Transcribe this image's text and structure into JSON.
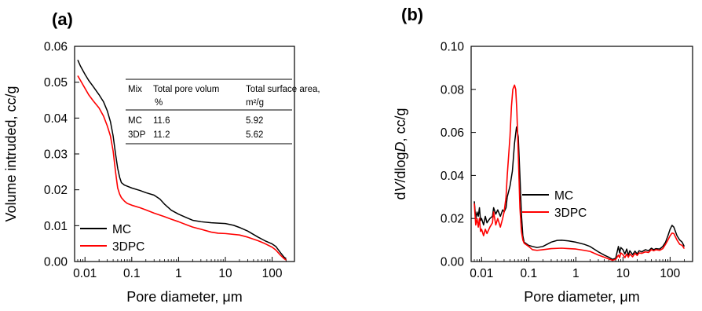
{
  "chart_data": [
    {
      "panel": "(a)",
      "type": "line",
      "xlabel": "Pore diameter, μm",
      "ylabel": "Volume intruded, cc/g",
      "x_scale": "log",
      "xlim": [
        0.006,
        300
      ],
      "ylim": [
        0,
        0.06
      ],
      "x_ticks": [
        0.01,
        0.1,
        1,
        10,
        100
      ],
      "x_tick_labels": [
        "0.01",
        "0.1",
        "1",
        "10",
        "100"
      ],
      "y_ticks": [
        0,
        0.01,
        0.02,
        0.03,
        0.04,
        0.05,
        0.06
      ],
      "y_tick_labels": [
        "0.00",
        "0.01",
        "0.02",
        "0.03",
        "0.04",
        "0.05",
        "0.06"
      ],
      "legend": {
        "placement": "bottom-left",
        "entries": [
          "MC",
          "3DPC"
        ]
      },
      "series": [
        {
          "name": "MC",
          "color": "#000000",
          "points": [
            [
              0.007,
              0.0562
            ],
            [
              0.008,
              0.0545
            ],
            [
              0.01,
              0.0522
            ],
            [
              0.012,
              0.0505
            ],
            [
              0.015,
              0.0488
            ],
            [
              0.02,
              0.0465
            ],
            [
              0.025,
              0.0445
            ],
            [
              0.03,
              0.042
            ],
            [
              0.035,
              0.039
            ],
            [
              0.04,
              0.035
            ],
            [
              0.045,
              0.03
            ],
            [
              0.05,
              0.026
            ],
            [
              0.055,
              0.0235
            ],
            [
              0.06,
              0.022
            ],
            [
              0.07,
              0.0213
            ],
            [
              0.08,
              0.021
            ],
            [
              0.1,
              0.0205
            ],
            [
              0.15,
              0.0198
            ],
            [
              0.2,
              0.0192
            ],
            [
              0.3,
              0.0185
            ],
            [
              0.4,
              0.0174
            ],
            [
              0.5,
              0.016
            ],
            [
              0.7,
              0.0143
            ],
            [
              1,
              0.0132
            ],
            [
              1.5,
              0.0122
            ],
            [
              2,
              0.0115
            ],
            [
              3,
              0.0111
            ],
            [
              5,
              0.0108
            ],
            [
              7,
              0.0107
            ],
            [
              10,
              0.0106
            ],
            [
              15,
              0.0101
            ],
            [
              20,
              0.0095
            ],
            [
              30,
              0.0085
            ],
            [
              50,
              0.0068
            ],
            [
              70,
              0.0058
            ],
            [
              100,
              0.0049
            ],
            [
              120,
              0.0042
            ],
            [
              150,
              0.0025
            ],
            [
              180,
              0.0012
            ],
            [
              200,
              0.0008
            ]
          ]
        },
        {
          "name": "3DPC",
          "color": "#ff0000",
          "points": [
            [
              0.007,
              0.0518
            ],
            [
              0.008,
              0.0505
            ],
            [
              0.01,
              0.0483
            ],
            [
              0.012,
              0.0465
            ],
            [
              0.015,
              0.0448
            ],
            [
              0.02,
              0.0428
            ],
            [
              0.025,
              0.0405
            ],
            [
              0.03,
              0.0378
            ],
            [
              0.035,
              0.035
            ],
            [
              0.04,
              0.0308
            ],
            [
              0.045,
              0.025
            ],
            [
              0.05,
              0.0205
            ],
            [
              0.055,
              0.0188
            ],
            [
              0.06,
              0.0178
            ],
            [
              0.07,
              0.0168
            ],
            [
              0.08,
              0.0162
            ],
            [
              0.1,
              0.0157
            ],
            [
              0.15,
              0.015
            ],
            [
              0.2,
              0.0144
            ],
            [
              0.3,
              0.0135
            ],
            [
              0.5,
              0.0125
            ],
            [
              0.7,
              0.0118
            ],
            [
              1,
              0.0111
            ],
            [
              1.5,
              0.0102
            ],
            [
              2,
              0.0096
            ],
            [
              3,
              0.009
            ],
            [
              5,
              0.0082
            ],
            [
              7,
              0.0079
            ],
            [
              10,
              0.0078
            ],
            [
              20,
              0.0074
            ],
            [
              30,
              0.0068
            ],
            [
              50,
              0.0058
            ],
            [
              70,
              0.005
            ],
            [
              100,
              0.004
            ],
            [
              120,
              0.0032
            ],
            [
              150,
              0.0018
            ],
            [
              180,
              0.0008
            ],
            [
              200,
              0.0004
            ]
          ]
        }
      ],
      "inset_table": {
        "headers": [
          "Mix",
          "Total pore volum %",
          "Total surface area, m²/g"
        ],
        "rows": [
          [
            "MC",
            "11.6",
            "5.92"
          ],
          [
            "3DP",
            "11.2",
            "5.62"
          ]
        ]
      }
    },
    {
      "panel": "(b)",
      "type": "line",
      "xlabel": "Pore diameter, μm",
      "ylabel": "dV/dlogD, cc/g",
      "x_scale": "log",
      "xlim": [
        0.006,
        300
      ],
      "ylim": [
        0,
        0.1
      ],
      "x_ticks": [
        0.01,
        0.1,
        1,
        10,
        100
      ],
      "x_tick_labels": [
        "0.01",
        "0.1",
        "1",
        "10",
        "100"
      ],
      "y_ticks": [
        0,
        0.02,
        0.04,
        0.06,
        0.08,
        0.1
      ],
      "y_tick_labels": [
        "0.00",
        "0.02",
        "0.04",
        "0.06",
        "0.08",
        "0.10"
      ],
      "legend": {
        "placement": "center-right",
        "entries": [
          "MC",
          "3DPC"
        ]
      },
      "series": [
        {
          "name": "MC",
          "color": "#000000",
          "points": [
            [
              0.007,
              0.028
            ],
            [
              0.0075,
              0.02
            ],
            [
              0.008,
              0.023
            ],
            [
              0.0085,
              0.021
            ],
            [
              0.009,
              0.025
            ],
            [
              0.0095,
              0.019
            ],
            [
              0.01,
              0.02
            ],
            [
              0.011,
              0.017
            ],
            [
              0.012,
              0.021
            ],
            [
              0.013,
              0.018
            ],
            [
              0.015,
              0.02
            ],
            [
              0.017,
              0.021
            ],
            [
              0.018,
              0.025
            ],
            [
              0.02,
              0.022
            ],
            [
              0.022,
              0.024
            ],
            [
              0.025,
              0.021
            ],
            [
              0.028,
              0.024
            ],
            [
              0.03,
              0.023
            ],
            [
              0.033,
              0.025
            ],
            [
              0.035,
              0.03
            ],
            [
              0.04,
              0.035
            ],
            [
              0.045,
              0.042
            ],
            [
              0.05,
              0.055
            ],
            [
              0.055,
              0.0625
            ],
            [
              0.06,
              0.058
            ],
            [
              0.065,
              0.04
            ],
            [
              0.07,
              0.022
            ],
            [
              0.075,
              0.012
            ],
            [
              0.08,
              0.009
            ],
            [
              0.1,
              0.0075
            ],
            [
              0.12,
              0.007
            ],
            [
              0.15,
              0.0065
            ],
            [
              0.2,
              0.007
            ],
            [
              0.3,
              0.009
            ],
            [
              0.4,
              0.0098
            ],
            [
              0.5,
              0.0099
            ],
            [
              0.7,
              0.0096
            ],
            [
              1,
              0.009
            ],
            [
              1.5,
              0.008
            ],
            [
              2,
              0.007
            ],
            [
              3,
              0.0045
            ],
            [
              4,
              0.003
            ],
            [
              5,
              0.002
            ],
            [
              6,
              0.001
            ],
            [
              7,
              0.0015
            ],
            [
              8,
              0.007
            ],
            [
              8.5,
              0.004
            ],
            [
              9,
              0.0065
            ],
            [
              10,
              0.0055
            ],
            [
              11,
              0.0035
            ],
            [
              12,
              0.0058
            ],
            [
              13,
              0.003
            ],
            [
              14,
              0.005
            ],
            [
              16,
              0.0032
            ],
            [
              18,
              0.0048
            ],
            [
              20,
              0.0035
            ],
            [
              22,
              0.005
            ],
            [
              25,
              0.0045
            ],
            [
              30,
              0.0055
            ],
            [
              35,
              0.005
            ],
            [
              40,
              0.0062
            ],
            [
              45,
              0.0055
            ],
            [
              50,
              0.006
            ],
            [
              60,
              0.0058
            ],
            [
              70,
              0.007
            ],
            [
              80,
              0.009
            ],
            [
              90,
              0.012
            ],
            [
              100,
              0.015
            ],
            [
              110,
              0.0168
            ],
            [
              120,
              0.016
            ],
            [
              140,
              0.012
            ],
            [
              160,
              0.01
            ],
            [
              180,
              0.009
            ],
            [
              200,
              0.007
            ]
          ]
        },
        {
          "name": "3DPC",
          "color": "#ff0000",
          "points": [
            [
              0.007,
              0.027
            ],
            [
              0.0075,
              0.017
            ],
            [
              0.008,
              0.02
            ],
            [
              0.0085,
              0.016
            ],
            [
              0.009,
              0.02
            ],
            [
              0.0095,
              0.014
            ],
            [
              0.01,
              0.015
            ],
            [
              0.011,
              0.012
            ],
            [
              0.012,
              0.015
            ],
            [
              0.013,
              0.013
            ],
            [
              0.015,
              0.016
            ],
            [
              0.017,
              0.018
            ],
            [
              0.018,
              0.023
            ],
            [
              0.02,
              0.017
            ],
            [
              0.022,
              0.02
            ],
            [
              0.025,
              0.016
            ],
            [
              0.028,
              0.02
            ],
            [
              0.03,
              0.023
            ],
            [
              0.033,
              0.03
            ],
            [
              0.035,
              0.04
            ],
            [
              0.04,
              0.058
            ],
            [
              0.043,
              0.072
            ],
            [
              0.046,
              0.08
            ],
            [
              0.05,
              0.082
            ],
            [
              0.053,
              0.08
            ],
            [
              0.056,
              0.07
            ],
            [
              0.06,
              0.05
            ],
            [
              0.065,
              0.025
            ],
            [
              0.07,
              0.014
            ],
            [
              0.075,
              0.01
            ],
            [
              0.08,
              0.0085
            ],
            [
              0.1,
              0.007
            ],
            [
              0.12,
              0.0055
            ],
            [
              0.15,
              0.0052
            ],
            [
              0.2,
              0.0055
            ],
            [
              0.3,
              0.006
            ],
            [
              0.5,
              0.0062
            ],
            [
              0.7,
              0.006
            ],
            [
              1,
              0.0058
            ],
            [
              1.5,
              0.0052
            ],
            [
              2,
              0.0047
            ],
            [
              3,
              0.003
            ],
            [
              4,
              0.002
            ],
            [
              5,
              0.0012
            ],
            [
              6,
              0.0006
            ],
            [
              7,
              0.001
            ],
            [
              8,
              0.003
            ],
            [
              8.5,
              0.0018
            ],
            [
              9,
              0.004
            ],
            [
              10,
              0.0032
            ],
            [
              11,
              0.0018
            ],
            [
              12,
              0.0035
            ],
            [
              13,
              0.002
            ],
            [
              14,
              0.0035
            ],
            [
              16,
              0.0022
            ],
            [
              18,
              0.0038
            ],
            [
              20,
              0.0028
            ],
            [
              22,
              0.004
            ],
            [
              25,
              0.0038
            ],
            [
              30,
              0.0045
            ],
            [
              35,
              0.0042
            ],
            [
              40,
              0.0055
            ],
            [
              45,
              0.005
            ],
            [
              50,
              0.0055
            ],
            [
              60,
              0.0052
            ],
            [
              70,
              0.006
            ],
            [
              80,
              0.008
            ],
            [
              90,
              0.01
            ],
            [
              100,
              0.012
            ],
            [
              110,
              0.0132
            ],
            [
              120,
              0.013
            ],
            [
              140,
              0.01
            ],
            [
              160,
              0.008
            ],
            [
              180,
              0.0075
            ],
            [
              200,
              0.006
            ]
          ]
        }
      ]
    }
  ]
}
